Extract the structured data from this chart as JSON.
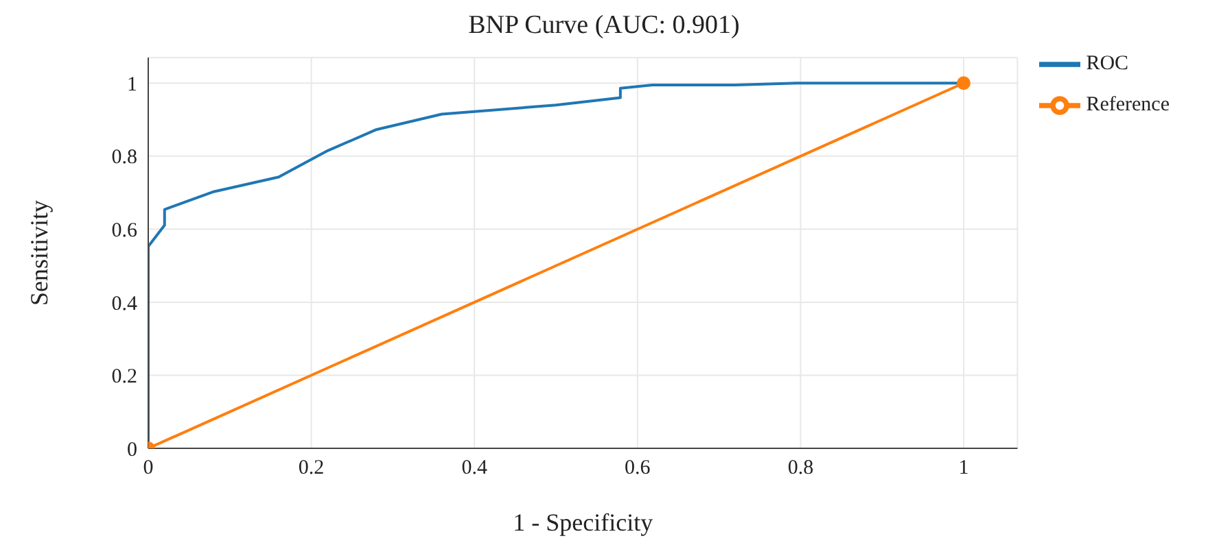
{
  "chart_data": {
    "type": "line",
    "title": "BNP Curve (AUC: 0.901)",
    "xlabel": "1 - Specificity",
    "ylabel": "Sensitivity",
    "xlim": [
      0,
      1.066
    ],
    "ylim": [
      0,
      1.07
    ],
    "xticks": [
      0,
      0.2,
      0.4,
      0.6,
      0.8,
      1
    ],
    "yticks": [
      0,
      0.2,
      0.4,
      0.6,
      0.8,
      1
    ],
    "grid": true,
    "legend": "top right",
    "line_style": "solid",
    "series": [
      {
        "name": "ROC",
        "color": "#1f77b4",
        "marker": "none",
        "x": [
          0,
          0,
          0.02,
          0.02,
          0.079,
          0.16,
          0.22,
          0.28,
          0.36,
          0.5,
          0.579,
          0.579,
          0.618,
          0.72,
          0.795,
          1
        ],
        "values": [
          0,
          0.553,
          0.611,
          0.654,
          0.702,
          0.743,
          0.815,
          0.873,
          0.915,
          0.94,
          0.96,
          0.986,
          0.995,
          0.995,
          1,
          1
        ]
      },
      {
        "name": "Reference",
        "color": "#ff7f0e",
        "marker": "circle",
        "x": [
          0,
          1
        ],
        "values": [
          0,
          1
        ]
      }
    ]
  }
}
